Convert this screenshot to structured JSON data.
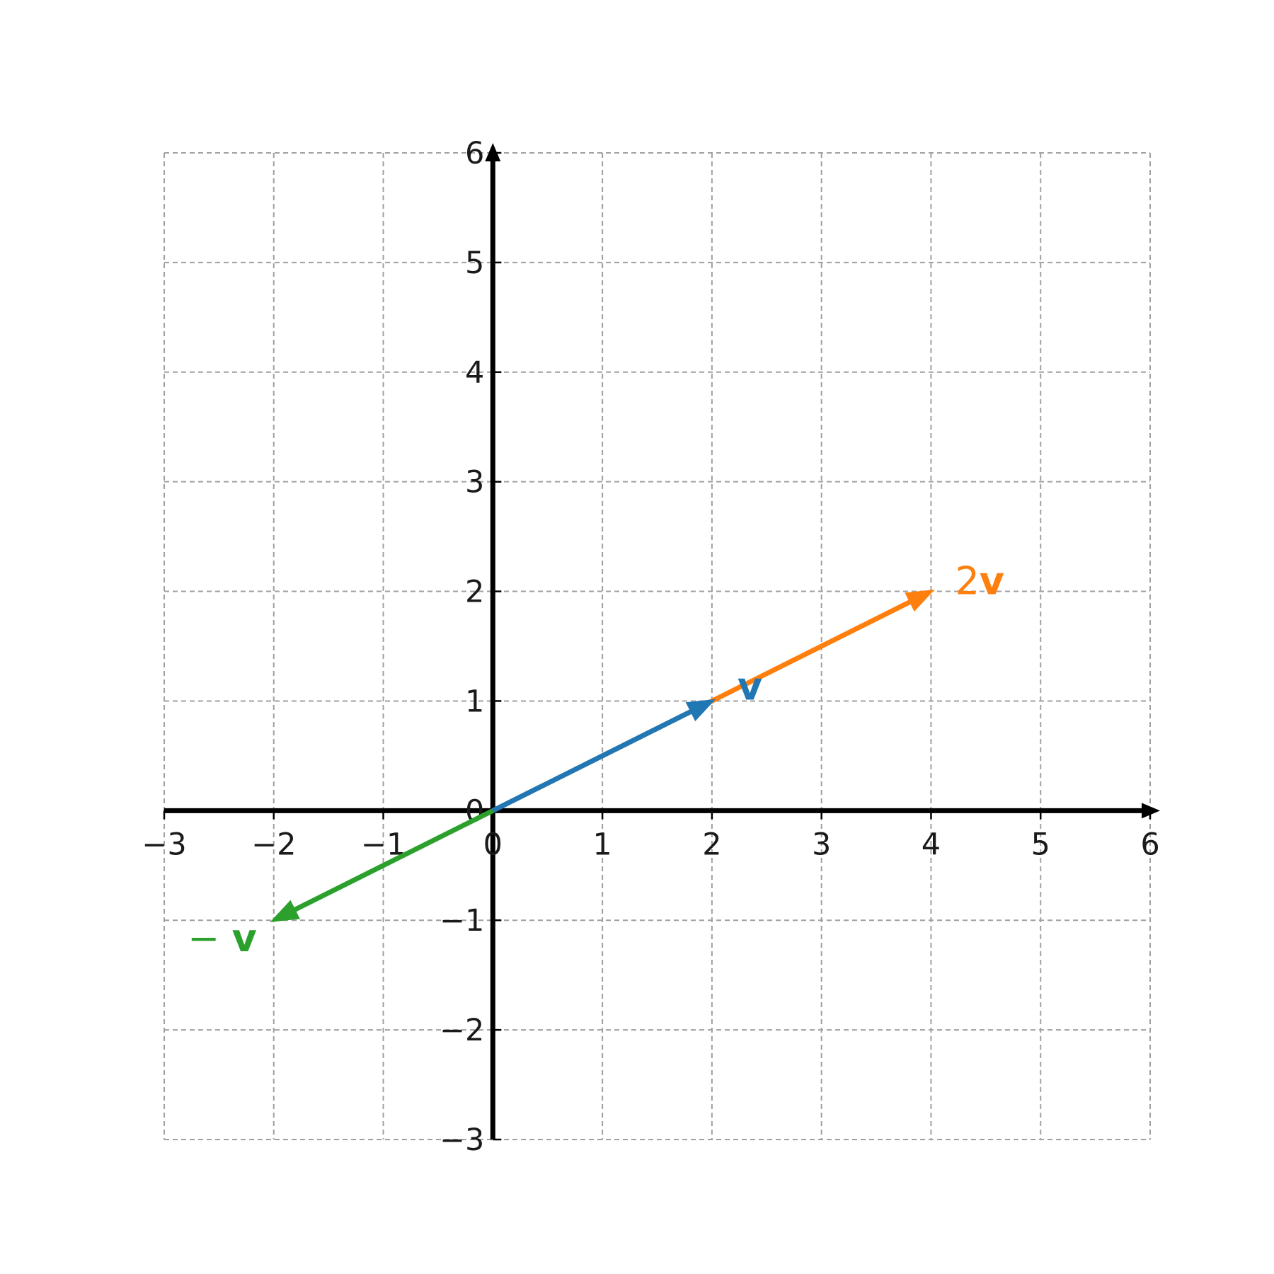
{
  "chart_data": {
    "type": "vector",
    "title": "",
    "xlabel": "",
    "ylabel": "",
    "xlim": [
      -3,
      6
    ],
    "ylim": [
      -3,
      6
    ],
    "grid": true,
    "x_ticks": [
      -3,
      -2,
      -1,
      0,
      1,
      2,
      3,
      4,
      5,
      6
    ],
    "y_ticks": [
      -3,
      -2,
      -1,
      0,
      1,
      2,
      3,
      4,
      5,
      6
    ],
    "x_tick_labels": [
      "−3",
      "−2",
      "−1",
      "0",
      "1",
      "2",
      "3",
      "4",
      "5",
      "6"
    ],
    "y_tick_labels": [
      "−3",
      "−2",
      "−1",
      "0",
      "1",
      "2",
      "3",
      "4",
      "5",
      "6"
    ],
    "vectors": [
      {
        "id": "v",
        "from": [
          0,
          0
        ],
        "to": [
          2,
          1
        ],
        "color": "#1f77b4",
        "label_prefix": "",
        "label_symbol": "v"
      },
      {
        "id": "2v",
        "from": [
          0,
          0
        ],
        "to": [
          4,
          2
        ],
        "color": "#ff7f0e",
        "label_prefix": "2",
        "label_symbol": "v"
      },
      {
        "id": "neg-v",
        "from": [
          0,
          0
        ],
        "to": [
          -2,
          -1
        ],
        "color": "#2ca02c",
        "label_prefix": "− ",
        "label_symbol": "v"
      }
    ]
  }
}
